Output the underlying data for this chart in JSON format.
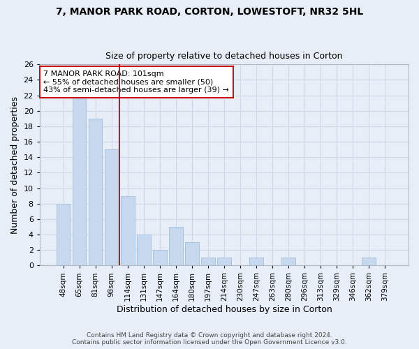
{
  "title1": "7, MANOR PARK ROAD, CORTON, LOWESTOFT, NR32 5HL",
  "title2": "Size of property relative to detached houses in Corton",
  "xlabel": "Distribution of detached houses by size in Corton",
  "ylabel": "Number of detached properties",
  "categories": [
    "48sqm",
    "65sqm",
    "81sqm",
    "98sqm",
    "114sqm",
    "131sqm",
    "147sqm",
    "164sqm",
    "180sqm",
    "197sqm",
    "214sqm",
    "230sqm",
    "247sqm",
    "263sqm",
    "280sqm",
    "296sqm",
    "313sqm",
    "329sqm",
    "346sqm",
    "362sqm",
    "379sqm"
  ],
  "values": [
    8,
    22,
    19,
    15,
    9,
    4,
    2,
    5,
    3,
    1,
    1,
    0,
    1,
    0,
    1,
    0,
    0,
    0,
    0,
    1,
    0
  ],
  "bar_color": "#c5d8ed",
  "bar_edge_color": "#a8c4de",
  "property_line_x": 3.5,
  "property_line_label": "7 MANOR PARK ROAD: 101sqm",
  "annotation_line1": "← 55% of detached houses are smaller (50)",
  "annotation_line2": "43% of semi-detached houses are larger (39) →",
  "annotation_box_color": "#ffffff",
  "annotation_box_edge": "#cc0000",
  "vline_color": "#cc0000",
  "ylim": [
    0,
    26
  ],
  "yticks": [
    0,
    2,
    4,
    6,
    8,
    10,
    12,
    14,
    16,
    18,
    20,
    22,
    24,
    26
  ],
  "grid_color": "#d0d8e8",
  "background_color": "#e8eef8",
  "footer1": "Contains HM Land Registry data © Crown copyright and database right 2024.",
  "footer2": "Contains public sector information licensed under the Open Government Licence v3.0."
}
